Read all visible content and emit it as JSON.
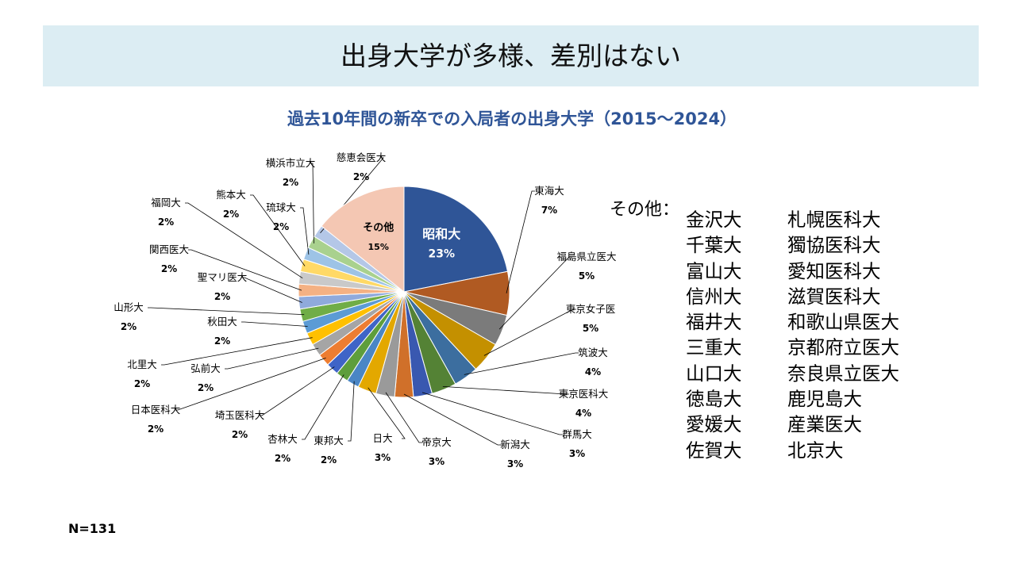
{
  "slide_title": "出身大学が多様、差別はない",
  "chart_data": {
    "type": "pie",
    "title": "過去10年間の新卒での入局者の出身大学（2015～2024）",
    "slices": [
      {
        "label": "昭和大",
        "value": 23,
        "pct_label": "23%",
        "color": "#2f5597"
      },
      {
        "label": "東海大",
        "value": 7,
        "pct_label": "7%",
        "color": "#b05a22"
      },
      {
        "label": "福島県立医大",
        "value": 5,
        "pct_label": "5%",
        "color": "#7b7b7b"
      },
      {
        "label": "東京女子医",
        "value": 5,
        "pct_label": "5%",
        "color": "#c49000"
      },
      {
        "label": "筑波大",
        "value": 4,
        "pct_label": "4%",
        "color": "#3c6e9f"
      },
      {
        "label": "東京医科大",
        "value": 4,
        "pct_label": "4%",
        "color": "#548235"
      },
      {
        "label": "群馬大",
        "value": 3,
        "pct_label": "3%",
        "color": "#3958b0"
      },
      {
        "label": "新潟大",
        "value": 3,
        "pct_label": "3%",
        "color": "#d0702a"
      },
      {
        "label": "帝京大",
        "value": 3,
        "pct_label": "3%",
        "color": "#9a9a9a"
      },
      {
        "label": "日大",
        "value": 3,
        "pct_label": "3%",
        "color": "#e3a800"
      },
      {
        "label": "東邦大",
        "value": 2,
        "pct_label": "2%",
        "color": "#4a86c5"
      },
      {
        "label": "杏林大",
        "value": 2,
        "pct_label": "2%",
        "color": "#5e9e3c"
      },
      {
        "label": "埼玉医科大",
        "value": 2,
        "pct_label": "2%",
        "color": "#3f64c7"
      },
      {
        "label": "日本医科大",
        "value": 2,
        "pct_label": "2%",
        "color": "#ed7d31"
      },
      {
        "label": "弘前大",
        "value": 2,
        "pct_label": "2%",
        "color": "#a5a5a5"
      },
      {
        "label": "北里大",
        "value": 2,
        "pct_label": "2%",
        "color": "#ffc000"
      },
      {
        "label": "秋田大",
        "value": 2,
        "pct_label": "2%",
        "color": "#5b9bd5"
      },
      {
        "label": "山形大",
        "value": 2,
        "pct_label": "2%",
        "color": "#70ad47"
      },
      {
        "label": "聖マリ医大",
        "value": 2,
        "pct_label": "2%",
        "color": "#8faadc"
      },
      {
        "label": "関西医大",
        "value": 2,
        "pct_label": "2%",
        "color": "#f4b183"
      },
      {
        "label": "福岡大",
        "value": 2,
        "pct_label": "2%",
        "color": "#c9c9c9"
      },
      {
        "label": "熊本大",
        "value": 2,
        "pct_label": "2%",
        "color": "#ffd966"
      },
      {
        "label": "琉球大",
        "value": 2,
        "pct_label": "2%",
        "color": "#9dc3e6"
      },
      {
        "label": "横浜市立大",
        "value": 2,
        "pct_label": "2%",
        "color": "#a9d18e"
      },
      {
        "label": "慈恵会医大",
        "value": 2,
        "pct_label": "2%",
        "color": "#b4c7e7"
      },
      {
        "label": "その他",
        "value": 15,
        "pct_label": "15%",
        "color": "#f4c7b3"
      }
    ]
  },
  "others": {
    "label": "その他：",
    "universities": [
      "金沢大",
      "札幌医科大",
      "千葉大",
      "獨協医科大",
      "富山大",
      "愛知医科大",
      "信州大",
      "滋賀医科大",
      "福井大",
      "和歌山県医大",
      "三重大",
      "京都府立医大",
      "山口大",
      "奈良県立医大",
      "徳島大",
      "鹿児島大",
      "愛媛大",
      "産業医大",
      "佐賀大",
      "北京大"
    ]
  },
  "sample_size": "N=131"
}
